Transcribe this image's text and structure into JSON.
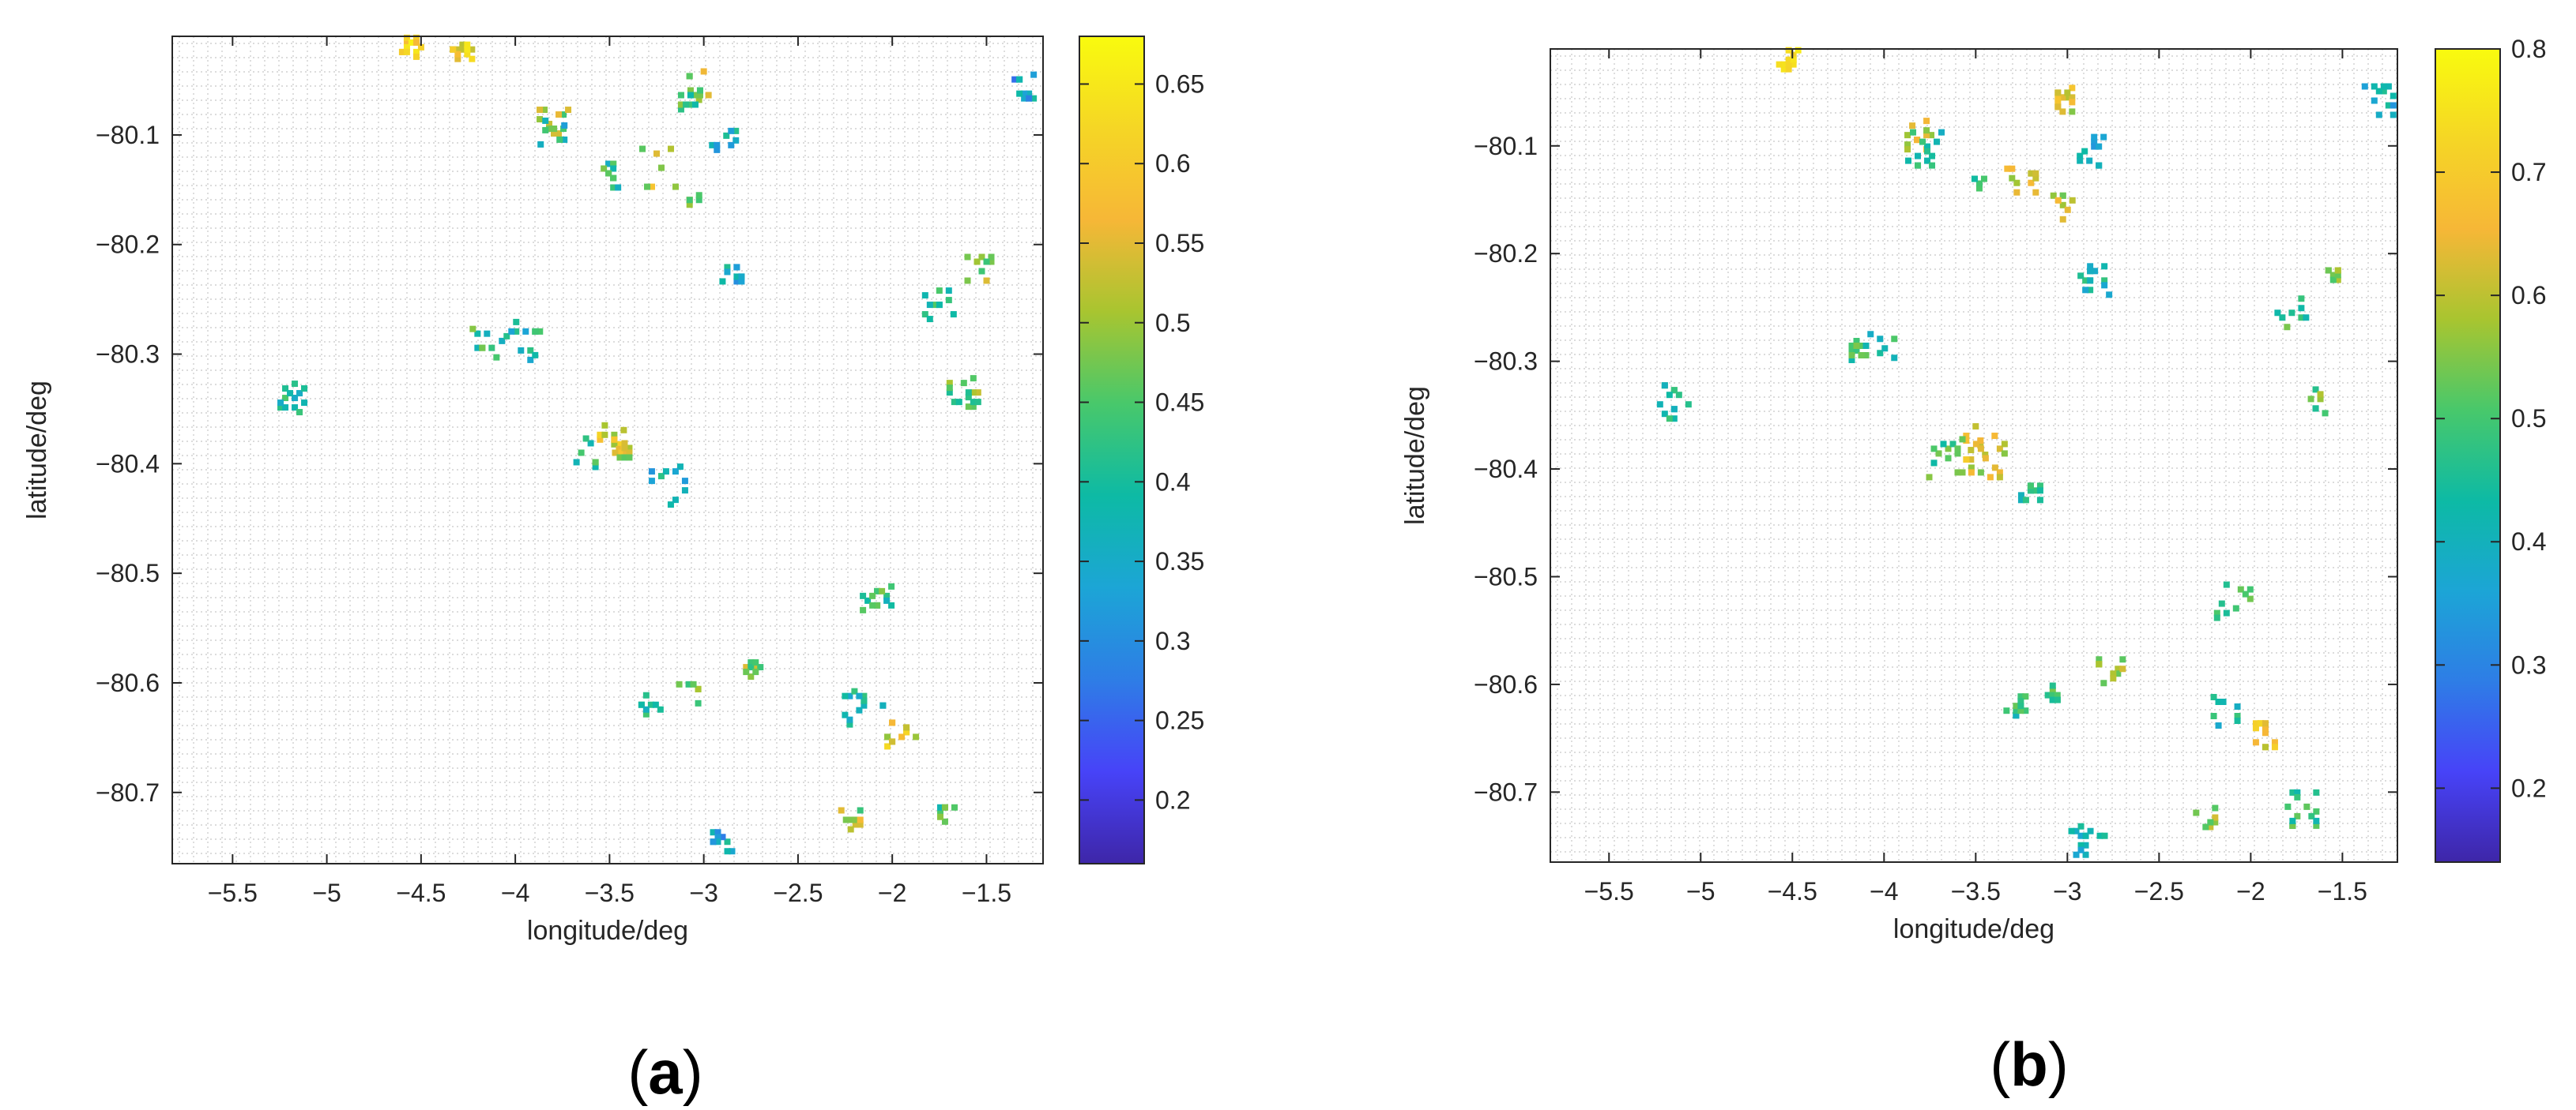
{
  "chart_data": [
    {
      "panel": "(a)",
      "panel_letter": "a",
      "type": "heatmap",
      "xlabel": "longitude/deg",
      "ylabel": "latitude/deg",
      "xlim": [
        -5.82,
        -1.2
      ],
      "ylim": [
        -80.765,
        -80.01
      ],
      "xticks": [
        -5.5,
        -5,
        -4.5,
        -4,
        -3.5,
        -3,
        -2.5,
        -2,
        -1.5
      ],
      "xtick_labels": [
        "−5.5",
        "−5",
        "−4.5",
        "−4",
        "−3.5",
        "−3",
        "−2.5",
        "−2",
        "−1.5"
      ],
      "yticks": [
        -80.1,
        -80.2,
        -80.3,
        -80.4,
        -80.5,
        -80.6,
        -80.7
      ],
      "ytick_labels": [
        "−80.1",
        "−80.2",
        "−80.3",
        "−80.4",
        "−80.5",
        "−80.6",
        "−80.7"
      ],
      "grid": true,
      "colorbar": {
        "clim": [
          0.16,
          0.68
        ],
        "ticks": [
          0.2,
          0.25,
          0.3,
          0.35,
          0.4,
          0.45,
          0.5,
          0.55,
          0.6,
          0.65
        ],
        "tick_labels": [
          "0.2",
          "0.25",
          "0.3",
          "0.35",
          "0.4",
          "0.45",
          "0.5",
          "0.55",
          "0.6",
          "0.65"
        ],
        "colormap": [
          "#3e26a8",
          "#4743f8",
          "#2e7de6",
          "#1ca5d6",
          "#0dbaa5",
          "#48c86b",
          "#a8c530",
          "#f6b737",
          "#f5d625",
          "#f9fb0e"
        ]
      },
      "clusters": [
        {
          "lon": -4.55,
          "lat": -80.02,
          "v": 0.62
        },
        {
          "lon": -4.28,
          "lat": -80.022,
          "v": 0.58
        },
        {
          "lon": -3.0,
          "lat": -80.055,
          "v": 0.52
        },
        {
          "lon": -3.07,
          "lat": -80.068,
          "v": 0.42
        },
        {
          "lon": -1.3,
          "lat": -80.058,
          "v": 0.33
        },
        {
          "lon": -3.82,
          "lat": -80.09,
          "v": 0.5
        },
        {
          "lon": -3.79,
          "lat": -80.1,
          "v": 0.38
        },
        {
          "lon": -2.88,
          "lat": -80.105,
          "v": 0.35
        },
        {
          "lon": -3.25,
          "lat": -80.13,
          "v": 0.52
        },
        {
          "lon": -3.48,
          "lat": -80.135,
          "v": 0.42
        },
        {
          "lon": -3.05,
          "lat": -80.155,
          "v": 0.5
        },
        {
          "lon": -1.55,
          "lat": -80.22,
          "v": 0.48
        },
        {
          "lon": -2.85,
          "lat": -80.225,
          "v": 0.36
        },
        {
          "lon": -1.75,
          "lat": -80.255,
          "v": 0.42
        },
        {
          "lon": -4.15,
          "lat": -80.29,
          "v": 0.42
        },
        {
          "lon": -3.97,
          "lat": -80.288,
          "v": 0.38
        },
        {
          "lon": -1.62,
          "lat": -80.335,
          "v": 0.46
        },
        {
          "lon": -5.17,
          "lat": -80.34,
          "v": 0.4
        },
        {
          "lon": -3.5,
          "lat": -80.378,
          "v": 0.56
        },
        {
          "lon": -3.65,
          "lat": -80.39,
          "v": 0.44
        },
        {
          "lon": -3.42,
          "lat": -80.39,
          "v": 0.52
        },
        {
          "lon": -3.2,
          "lat": -80.42,
          "v": 0.38
        },
        {
          "lon": -2.08,
          "lat": -80.525,
          "v": 0.42
        },
        {
          "lon": -2.75,
          "lat": -80.59,
          "v": 0.48
        },
        {
          "lon": -3.08,
          "lat": -80.61,
          "v": 0.44
        },
        {
          "lon": -3.28,
          "lat": -80.62,
          "v": 0.4
        },
        {
          "lon": -2.15,
          "lat": -80.625,
          "v": 0.38
        },
        {
          "lon": -1.95,
          "lat": -80.645,
          "v": 0.56
        },
        {
          "lon": -2.22,
          "lat": -80.725,
          "v": 0.5
        },
        {
          "lon": -1.72,
          "lat": -80.718,
          "v": 0.42
        },
        {
          "lon": -2.9,
          "lat": -80.745,
          "v": 0.34
        }
      ]
    },
    {
      "panel": "(b)",
      "panel_letter": "b",
      "type": "heatmap",
      "xlabel": "longitude/deg",
      "ylabel": "latitude/deg",
      "xlim": [
        -5.82,
        -1.2
      ],
      "ylim": [
        -80.765,
        -80.01
      ],
      "xticks": [
        -5.5,
        -5,
        -4.5,
        -4,
        -3.5,
        -3,
        -2.5,
        -2,
        -1.5
      ],
      "xtick_labels": [
        "−5.5",
        "−5",
        "−4.5",
        "−4",
        "−3.5",
        "−3",
        "−2.5",
        "−2",
        "−1.5"
      ],
      "yticks": [
        -80.1,
        -80.2,
        -80.3,
        -80.4,
        -80.5,
        -80.6,
        -80.7
      ],
      "ytick_labels": [
        "−80.1",
        "−80.2",
        "−80.3",
        "−80.4",
        "−80.5",
        "−80.6",
        "−80.7"
      ],
      "grid": true,
      "colorbar": {
        "clim": [
          0.14,
          0.8
        ],
        "ticks": [
          0.2,
          0.3,
          0.4,
          0.5,
          0.6,
          0.7,
          0.8
        ],
        "tick_labels": [
          "0.2",
          "0.3",
          "0.4",
          "0.5",
          "0.6",
          "0.7",
          "0.8"
        ],
        "colormap": [
          "#3e26a8",
          "#4743f8",
          "#2e7de6",
          "#1ca5d6",
          "#0dbaa5",
          "#48c86b",
          "#a8c530",
          "#f6b737",
          "#f5d625",
          "#f9fb0e"
        ]
      },
      "clusters": [
        {
          "lon": -4.52,
          "lat": -80.02,
          "v": 0.7
        },
        {
          "lon": -3.0,
          "lat": -80.055,
          "v": 0.62
        },
        {
          "lon": -1.3,
          "lat": -80.058,
          "v": 0.4
        },
        {
          "lon": -3.82,
          "lat": -80.09,
          "v": 0.62
        },
        {
          "lon": -3.79,
          "lat": -80.105,
          "v": 0.44
        },
        {
          "lon": -2.88,
          "lat": -80.105,
          "v": 0.4
        },
        {
          "lon": -3.25,
          "lat": -80.13,
          "v": 0.62
        },
        {
          "lon": -3.48,
          "lat": -80.135,
          "v": 0.48
        },
        {
          "lon": -3.05,
          "lat": -80.155,
          "v": 0.6
        },
        {
          "lon": -1.55,
          "lat": -80.22,
          "v": 0.56
        },
        {
          "lon": -2.85,
          "lat": -80.225,
          "v": 0.42
        },
        {
          "lon": -1.75,
          "lat": -80.255,
          "v": 0.48
        },
        {
          "lon": -4.15,
          "lat": -80.29,
          "v": 0.48
        },
        {
          "lon": -3.97,
          "lat": -80.288,
          "v": 0.44
        },
        {
          "lon": -1.62,
          "lat": -80.335,
          "v": 0.52
        },
        {
          "lon": -5.17,
          "lat": -80.34,
          "v": 0.46
        },
        {
          "lon": -3.5,
          "lat": -80.378,
          "v": 0.66
        },
        {
          "lon": -3.65,
          "lat": -80.39,
          "v": 0.5
        },
        {
          "lon": -3.42,
          "lat": -80.39,
          "v": 0.6
        },
        {
          "lon": -3.2,
          "lat": -80.42,
          "v": 0.44
        },
        {
          "lon": -2.08,
          "lat": -80.525,
          "v": 0.48
        },
        {
          "lon": -2.75,
          "lat": -80.59,
          "v": 0.56
        },
        {
          "lon": -3.08,
          "lat": -80.61,
          "v": 0.5
        },
        {
          "lon": -3.28,
          "lat": -80.62,
          "v": 0.46
        },
        {
          "lon": -2.15,
          "lat": -80.625,
          "v": 0.42
        },
        {
          "lon": -1.92,
          "lat": -80.645,
          "v": 0.66
        },
        {
          "lon": -2.22,
          "lat": -80.728,
          "v": 0.58
        },
        {
          "lon": -1.72,
          "lat": -80.718,
          "v": 0.48
        },
        {
          "lon": -2.9,
          "lat": -80.745,
          "v": 0.4
        }
      ]
    }
  ]
}
